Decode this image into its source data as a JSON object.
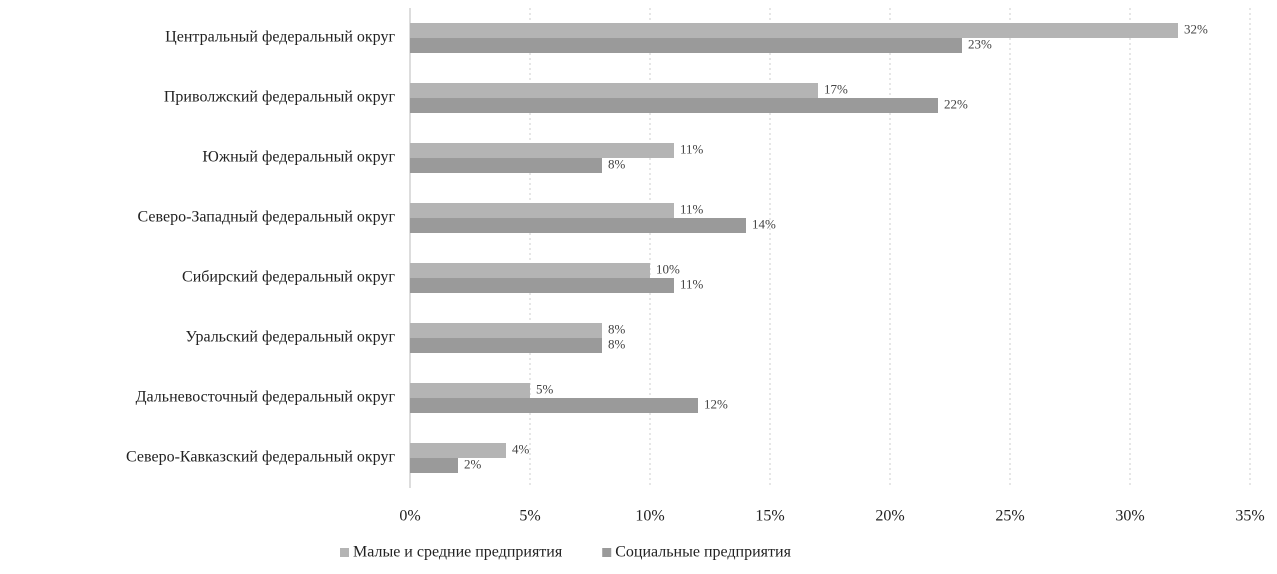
{
  "chart_data": {
    "type": "barh",
    "categories": [
      "Центральный федеральный округ",
      "Приволжский федеральный округ",
      "Южный федеральный округ",
      "Северо-Западный федеральный округ",
      "Сибирский федеральный округ",
      "Уральский федеральный округ",
      "Дальневосточный федеральный округ",
      "Северо-Кавказский федеральный округ"
    ],
    "series": [
      {
        "name": "Малые и средние предприятия",
        "color": "#b4b4b4",
        "values": [
          32,
          17,
          11,
          11,
          10,
          8,
          5,
          4
        ],
        "value_labels": [
          "32%",
          "17%",
          "11%",
          "11%",
          "10%",
          "8%",
          "5%",
          "4%"
        ]
      },
      {
        "name": "Социальные предприятия",
        "color": "#9a9a9a",
        "values": [
          23,
          22,
          8,
          14,
          11,
          8,
          12,
          2
        ],
        "value_labels": [
          "23%",
          "22%",
          "8%",
          "14%",
          "11%",
          "8%",
          "12%",
          "2%"
        ]
      }
    ],
    "xlim": [
      0,
      35
    ],
    "xticks": [
      {
        "value": 0,
        "label": "0%"
      },
      {
        "value": 5,
        "label": "5%"
      },
      {
        "value": 10,
        "label": "10%"
      },
      {
        "value": 15,
        "label": "15%"
      },
      {
        "value": 20,
        "label": "20%"
      },
      {
        "value": 25,
        "label": "25%"
      },
      {
        "value": 30,
        "label": "30%"
      },
      {
        "value": 35,
        "label": "35%"
      }
    ],
    "grid": true,
    "legend": "bottom"
  }
}
